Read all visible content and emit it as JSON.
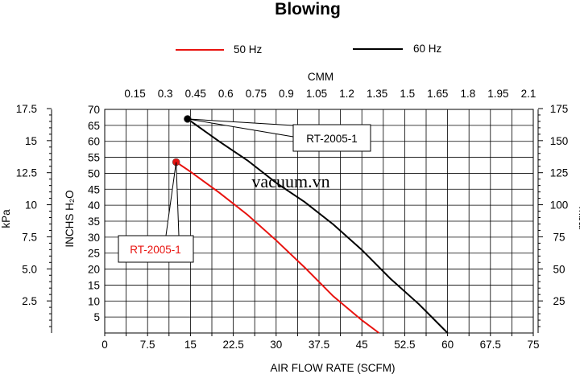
{
  "chart_data": {
    "type": "line",
    "title": "Blowing",
    "xlabel": "AIR FLOW RATE (SCFM)",
    "ylabel": "INCHS H₂O",
    "x2label": "CMM",
    "y_left2_label": "kPa",
    "y_right_label": "mbar",
    "watermark": "vacuum.vn",
    "xlim": [
      0,
      75
    ],
    "ylim": [
      0,
      70
    ],
    "x_ticks": [
      "0",
      "7.5",
      "15",
      "22.5",
      "30",
      "37.5",
      "45",
      "52.5",
      "60",
      "67.5",
      "75"
    ],
    "y_ticks": [
      "5",
      "10",
      "15",
      "20",
      "25",
      "30",
      "35",
      "40",
      "45",
      "50",
      "55",
      "60",
      "65",
      "70"
    ],
    "x2_ticks": [
      "0.15",
      "0.3",
      "0.45",
      "0.6",
      "0.75",
      "0.9",
      "1.05",
      "1.2",
      "1.35",
      "1.5",
      "1.65",
      "1.8",
      "1.95",
      "2.1"
    ],
    "kpa_ticks": [
      "2.5",
      "5.0",
      "7.5",
      "10",
      "12.5",
      "15",
      "17.5"
    ],
    "mbar_ticks": [
      "25",
      "50",
      "75",
      "100",
      "125",
      "150",
      "175"
    ],
    "legend": [
      "50 Hz",
      "60 Hz"
    ],
    "legend_position": "top",
    "grid": true,
    "series": [
      {
        "name": "50 Hz",
        "color": "#e8130f",
        "annotation": "RT-2005-1",
        "x": [
          12.5,
          15,
          20,
          25,
          30,
          35,
          40,
          45,
          48
        ],
        "y": [
          53.5,
          50.5,
          44,
          37,
          29,
          20.5,
          11.5,
          4,
          0
        ]
      },
      {
        "name": "60 Hz",
        "color": "#000000",
        "annotation": "RT-2005-1",
        "x": [
          14.5,
          20,
          25,
          30,
          35,
          40,
          45,
          50,
          55,
          60
        ],
        "y": [
          67,
          60,
          54,
          47,
          41,
          34,
          26,
          17,
          9,
          0
        ]
      }
    ]
  }
}
